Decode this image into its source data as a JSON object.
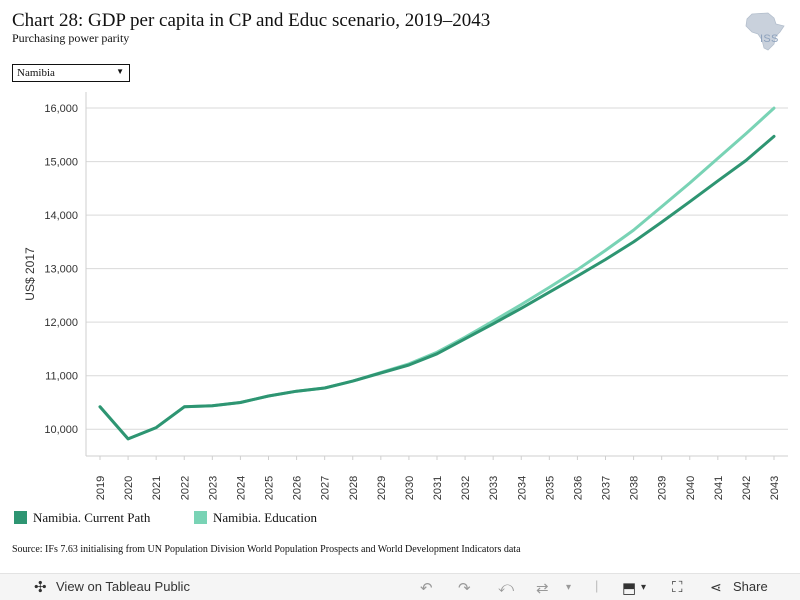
{
  "header": {
    "title": "Chart 28: GDP per capita in CP and Educ scenario, 2019–2043",
    "subtitle": "Purchasing power parity",
    "logo_text": "ISS"
  },
  "filter": {
    "selected": "Namibia"
  },
  "chart_data": {
    "type": "line",
    "ylabel": "US$ 2017",
    "ylim": [
      9500,
      16300
    ],
    "yticks": [
      10000,
      11000,
      12000,
      13000,
      14000,
      15000,
      16000
    ],
    "ytick_labels": [
      "10,000",
      "11,000",
      "12,000",
      "13,000",
      "14,000",
      "15,000",
      "16,000"
    ],
    "categories": [
      "2019",
      "2020",
      "2021",
      "2022",
      "2023",
      "2024",
      "2025",
      "2026",
      "2027",
      "2028",
      "2029",
      "2030",
      "2031",
      "2032",
      "2033",
      "2034",
      "2035",
      "2036",
      "2037",
      "2038",
      "2039",
      "2040",
      "2041",
      "2042",
      "2043"
    ],
    "grid": true,
    "series": [
      {
        "name": "Namibia. Education",
        "color": "#79d3b5",
        "values": [
          10420,
          9820,
          10030,
          10420,
          10440,
          10500,
          10620,
          10710,
          10770,
          10900,
          11060,
          11220,
          11440,
          11720,
          12020,
          12330,
          12650,
          12980,
          13340,
          13720,
          14160,
          14600,
          15060,
          15520,
          16000
        ]
      },
      {
        "name": "Namibia. Current Path",
        "color": "#2e9572",
        "values": [
          10420,
          9820,
          10030,
          10420,
          10440,
          10500,
          10620,
          10710,
          10770,
          10900,
          11050,
          11200,
          11410,
          11690,
          11970,
          12260,
          12560,
          12860,
          13170,
          13500,
          13870,
          14250,
          14640,
          15020,
          15470
        ]
      }
    ],
    "legend": {
      "position": "bottom",
      "entries": [
        {
          "label": "Namibia. Current Path",
          "color": "#2e9572"
        },
        {
          "label": "Namibia. Education",
          "color": "#79d3b5"
        }
      ]
    }
  },
  "source": "Source: IFs 7.63 initialising from UN Population Division World Population Prospects and World Development Indicators data",
  "toolbar": {
    "view_label": "View on Tableau Public",
    "share_label": "Share"
  }
}
